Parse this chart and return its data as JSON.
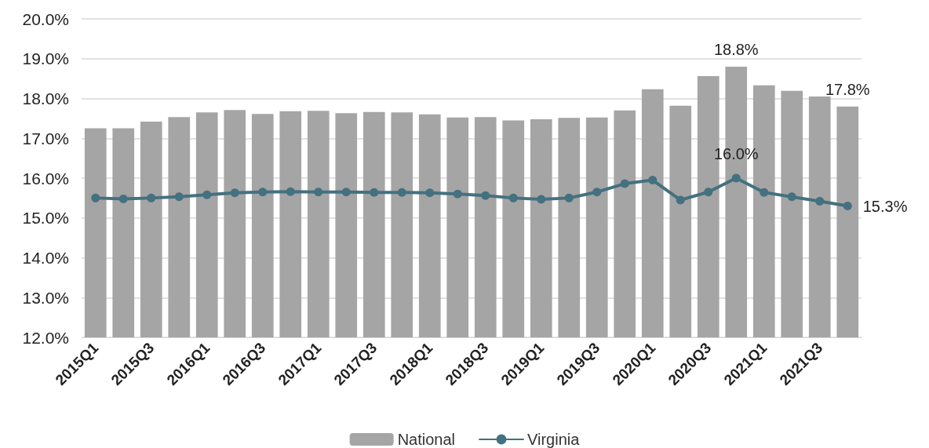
{
  "chart_data": {
    "type": "bar",
    "categories": [
      "2015Q1",
      null,
      "2015Q3",
      null,
      "2016Q1",
      null,
      "2016Q3",
      null,
      "2017Q1",
      null,
      "2017Q3",
      null,
      "2018Q1",
      null,
      "2018Q3",
      null,
      "2019Q1",
      null,
      "2019Q3",
      null,
      "2020Q1",
      null,
      "2020Q3",
      null,
      "2021Q1",
      null,
      "2021Q3",
      null
    ],
    "series": [
      {
        "name": "National",
        "color": "#a5a5a5",
        "values": [
          17.25,
          17.25,
          17.42,
          17.53,
          17.65,
          17.71,
          17.61,
          17.68,
          17.69,
          17.63,
          17.66,
          17.65,
          17.6,
          17.52,
          17.53,
          17.45,
          17.48,
          17.51,
          17.52,
          17.7,
          18.23,
          17.82,
          18.56,
          18.8,
          18.33,
          18.19,
          18.05,
          17.8
        ],
        "value_labels": [
          null,
          null,
          null,
          null,
          null,
          null,
          null,
          null,
          null,
          null,
          null,
          null,
          null,
          null,
          null,
          null,
          null,
          null,
          null,
          null,
          null,
          null,
          null,
          "18.8%",
          null,
          null,
          null,
          "17.8%"
        ]
      },
      {
        "name": "Virginia",
        "type": "line",
        "color": "#44717f",
        "values": [
          15.5,
          15.48,
          15.5,
          15.53,
          15.58,
          15.63,
          15.65,
          15.66,
          15.65,
          15.65,
          15.64,
          15.64,
          15.63,
          15.6,
          15.56,
          15.5,
          15.47,
          15.5,
          15.65,
          15.86,
          15.95,
          15.45,
          15.65,
          16.0,
          15.64,
          15.53,
          15.42,
          15.3
        ],
        "value_labels": [
          null,
          null,
          null,
          null,
          null,
          null,
          null,
          null,
          null,
          null,
          null,
          null,
          null,
          null,
          null,
          null,
          null,
          null,
          null,
          null,
          null,
          null,
          null,
          "16.0%",
          null,
          null,
          null,
          "15.3%"
        ]
      }
    ],
    "ylim": [
      12,
      20
    ],
    "yticks": [
      {
        "value": 12,
        "label": "12.0%"
      },
      {
        "value": 13,
        "label": "13.0%"
      },
      {
        "value": 14,
        "label": "14.0%"
      },
      {
        "value": 15,
        "label": "15.0%"
      },
      {
        "value": 16,
        "label": "16.0%"
      },
      {
        "value": 17,
        "label": "17.0%"
      },
      {
        "value": 18,
        "label": "18.0%"
      },
      {
        "value": 19,
        "label": "19.0%"
      },
      {
        "value": 20,
        "label": "20.0%"
      }
    ],
    "grid": "y",
    "legend": "bottom",
    "marker": "circle",
    "line_style": "solid"
  }
}
